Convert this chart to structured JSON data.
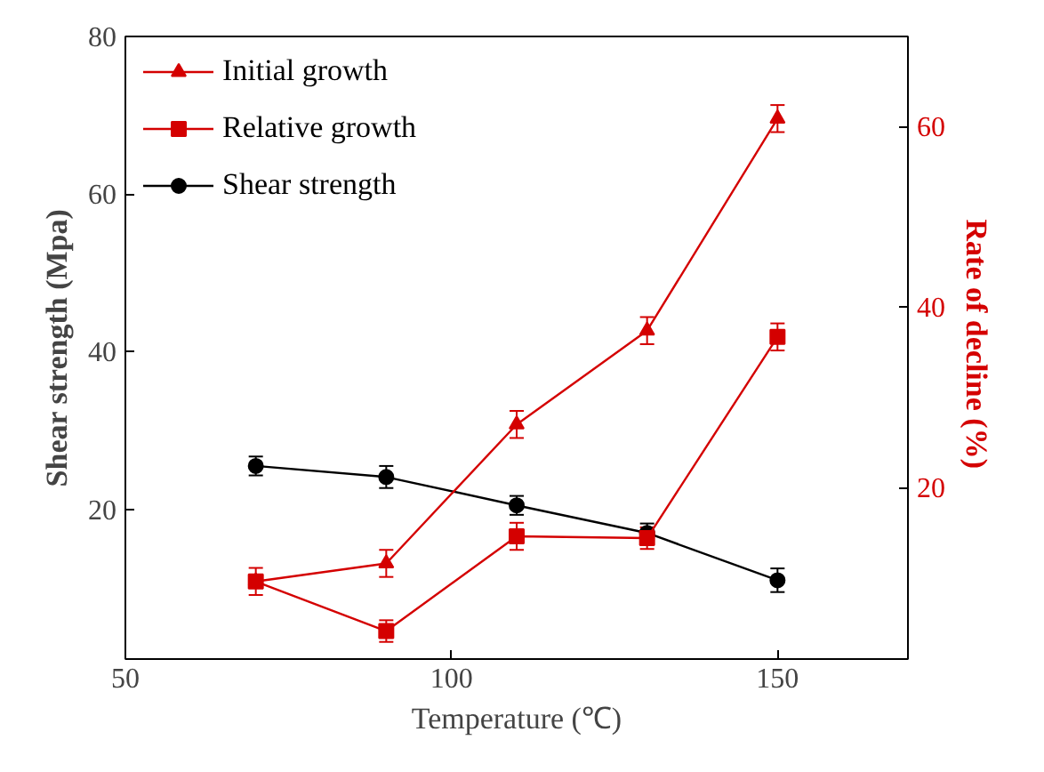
{
  "chart_data": {
    "type": "line",
    "xlabel": "Temperature (℃)",
    "ylabel": "Shear strength (Mpa)",
    "y2label": "Rate of decline  (%)",
    "x": [
      70,
      90,
      110,
      130,
      150
    ],
    "xlim": [
      50,
      170
    ],
    "xticks": [
      50,
      100,
      150
    ],
    "ylim": [
      1,
      80
    ],
    "yticks": [
      20,
      40,
      60,
      80
    ],
    "y2lim": [
      1,
      70
    ],
    "y2ticks": [
      20,
      40,
      60
    ],
    "grid": false,
    "legend": "top left",
    "line_style": "solid",
    "series": [
      {
        "name": "Initial growth",
        "color": "#d40000",
        "axis": "y2",
        "marker": "triangle",
        "values": [
          9.6,
          11.6,
          27.0,
          37.4,
          60.9
        ],
        "errors": [
          null,
          1.5,
          1.5,
          1.5,
          1.5
        ]
      },
      {
        "name": "Relative growth",
        "color": "#d40000",
        "axis": "y2",
        "marker": "square",
        "values": [
          9.6,
          4.1,
          14.6,
          14.4,
          36.7
        ],
        "errors": [
          1.5,
          1.2,
          1.5,
          1.2,
          1.5
        ]
      },
      {
        "name": "Shear strength",
        "color": "#000000",
        "axis": "y",
        "marker": "circle",
        "values": [
          25.5,
          24.1,
          20.5,
          17.0,
          11.0
        ],
        "errors": [
          1.2,
          1.4,
          1.2,
          1.2,
          1.5
        ]
      }
    ]
  }
}
